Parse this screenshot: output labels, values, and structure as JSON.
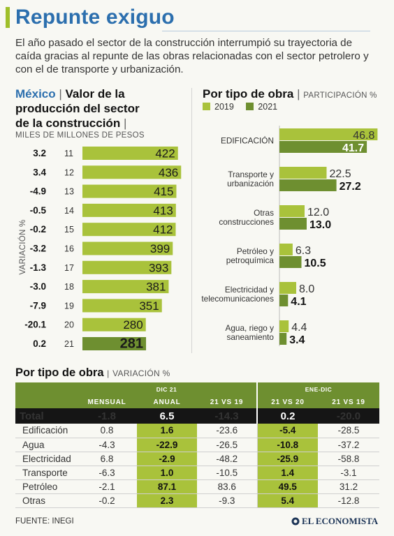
{
  "header": {
    "title": "Repunte exiguo",
    "subtitle": "El año pasado el sector de la construcción interrumpió su trayectoria de caída gracias al repunte de las obras relacionadas con el sector petrolero y con el de transporte y urbanización."
  },
  "left_section": {
    "title_blue": "México",
    "title_rest_1": "Valor de la",
    "title_rest_2": "producción del sector",
    "title_rest_3": "de la construcción",
    "units": "MILES DE MILLONES DE PESOS",
    "variation_label": "VARIACIÓN %"
  },
  "right_section": {
    "title": "Por tipo de obra",
    "title_thin": "PARTICIPACIÓN %",
    "legend": [
      "2019",
      "2021"
    ]
  },
  "colors": {
    "light_green": "#a9c23b",
    "dark_green": "#6e8f30",
    "blue": "#2c6fae",
    "table_total": "#151515"
  },
  "chart_data": [
    {
      "type": "bar",
      "orientation": "horizontal",
      "categories": [
        "11",
        "12",
        "13",
        "14",
        "15",
        "16",
        "17",
        "18",
        "19",
        "20",
        "21"
      ],
      "values": [
        422,
        436,
        415,
        413,
        412,
        399,
        393,
        381,
        351,
        280,
        281
      ],
      "variation": [
        "3.2",
        "3.4",
        "-4.9",
        "-0.5",
        "-0.2",
        "-3.2",
        "-1.3",
        "-3.0",
        "-7.9",
        "-20.1",
        "0.2"
      ],
      "highlight_last": true,
      "ylabel": "VARIACIÓN %",
      "xlabel": "MILES DE MILLONES DE PESOS"
    },
    {
      "type": "bar",
      "orientation": "horizontal",
      "title": "Por tipo de obra",
      "categories": [
        [
          "EDIFICACIÓN"
        ],
        [
          "Transporte y",
          "urbanización"
        ],
        [
          "Otras",
          "construcciones"
        ],
        [
          "Petróleo y",
          "petroquímica"
        ],
        [
          "Electricidad y",
          "telecomunicaciones"
        ],
        [
          "Agua, riego y",
          "saneamiento"
        ]
      ],
      "series": [
        {
          "name": "2019",
          "values": [
            46.8,
            22.5,
            12.0,
            6.3,
            8.0,
            4.4
          ]
        },
        {
          "name": "2021",
          "values": [
            41.7,
            27.2,
            13.0,
            10.5,
            4.1,
            3.4
          ]
        }
      ],
      "value_labels": [
        [
          "46.8",
          "22.5",
          "12.0",
          "6.3",
          "8.0",
          "4.4"
        ],
        [
          "41.7",
          "27.2",
          "13.0",
          "10.5",
          "4.1",
          "3.4"
        ]
      ],
      "xlabel": "PARTICIPACIÓN %"
    },
    {
      "type": "table",
      "title": "Por tipo de obra",
      "title_thin": "VARIACIÓN %",
      "group_headers": [
        "DIC 21",
        "ENE-DIC"
      ],
      "columns": [
        "",
        "MENSUAL",
        "ANUAL",
        "21 VS 19",
        "21 VS 20",
        "21 VS 19"
      ],
      "total": {
        "label": "Total",
        "values": [
          "-1.8",
          "6.5",
          "-14.3",
          "0.2",
          "-20.0"
        ]
      },
      "rows": [
        {
          "label": "Edificación",
          "values": [
            "0.8",
            "1.6",
            "-23.6",
            "-5.4",
            "-28.5"
          ]
        },
        {
          "label": "Agua",
          "values": [
            "-4.3",
            "-22.9",
            "-26.5",
            "-10.8",
            "-37.2"
          ]
        },
        {
          "label": "Electricidad",
          "values": [
            "6.8",
            "-2.9",
            "-48.2",
            "-25.9",
            "-58.8"
          ]
        },
        {
          "label": "Transporte",
          "values": [
            "-6.3",
            "1.0",
            "-10.5",
            "1.4",
            "-3.1"
          ]
        },
        {
          "label": "Petróleo",
          "values": [
            "-2.1",
            "87.1",
            "83.6",
            "49.5",
            "31.2"
          ]
        },
        {
          "label": "Otras",
          "values": [
            "-0.2",
            "2.3",
            "-9.3",
            "5.4",
            "-12.8"
          ]
        }
      ],
      "highlighted_columns": [
        "ANUAL",
        "21 VS 20"
      ]
    }
  ],
  "footer": {
    "source": "FUENTE: INEGI",
    "brand": "EL ECONOMISTA"
  }
}
